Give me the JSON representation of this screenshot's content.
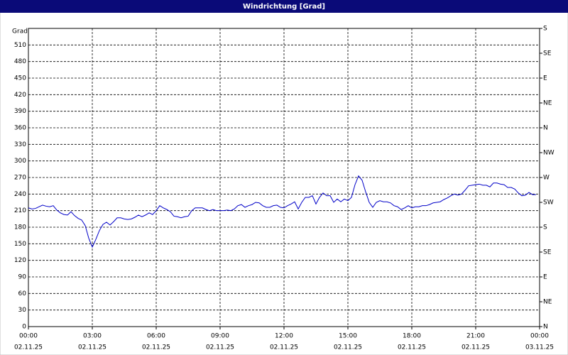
{
  "chart_data": {
    "type": "line",
    "title": "Windrichtung [Grad]",
    "y_label": "Grad",
    "color": "#0000c8",
    "grid": true,
    "xlim": [
      0,
      1440
    ],
    "xticks": [
      {
        "value": 0,
        "label": "00:00",
        "date": "02.11.25"
      },
      {
        "value": 180,
        "label": "03:00",
        "date": "02.11.25"
      },
      {
        "value": 360,
        "label": "06:00",
        "date": "02.11.25"
      },
      {
        "value": 540,
        "label": "09:00",
        "date": "02.11.25"
      },
      {
        "value": 720,
        "label": "12:00",
        "date": "02.11.25"
      },
      {
        "value": 900,
        "label": "15:00",
        "date": "02.11.25"
      },
      {
        "value": 1080,
        "label": "18:00",
        "date": "02.11.25"
      },
      {
        "value": 1260,
        "label": "21:00",
        "date": "02.11.25"
      },
      {
        "value": 1440,
        "label": "00:00",
        "date": "03.11.25"
      }
    ],
    "ylim": [
      0,
      540
    ],
    "yticks": [
      0,
      30,
      60,
      90,
      120,
      150,
      180,
      210,
      240,
      270,
      300,
      330,
      360,
      390,
      420,
      450,
      480,
      510
    ],
    "y2lim": [
      0,
      540
    ],
    "y2ticks": [
      {
        "value": 0,
        "label": "N"
      },
      {
        "value": 45,
        "label": "NE"
      },
      {
        "value": 90,
        "label": "E"
      },
      {
        "value": 135,
        "label": "SE"
      },
      {
        "value": 180,
        "label": "S"
      },
      {
        "value": 225,
        "label": "SW"
      },
      {
        "value": 270,
        "label": "W"
      },
      {
        "value": 315,
        "label": "NW"
      },
      {
        "value": 360,
        "label": "N"
      },
      {
        "value": 405,
        "label": "NE"
      },
      {
        "value": 450,
        "label": "E"
      },
      {
        "value": 495,
        "label": "SE"
      },
      {
        "value": 540,
        "label": "S"
      }
    ],
    "x": [
      0,
      10,
      20,
      30,
      40,
      50,
      60,
      70,
      80,
      90,
      100,
      110,
      120,
      130,
      140,
      150,
      160,
      170,
      180,
      190,
      200,
      210,
      220,
      230,
      240,
      250,
      260,
      270,
      280,
      290,
      300,
      310,
      320,
      330,
      340,
      350,
      360,
      370,
      380,
      390,
      400,
      410,
      420,
      430,
      440,
      450,
      460,
      470,
      480,
      490,
      500,
      510,
      520,
      530,
      540,
      550,
      560,
      570,
      580,
      590,
      600,
      610,
      620,
      630,
      640,
      650,
      660,
      670,
      680,
      690,
      700,
      710,
      720,
      730,
      740,
      750,
      760,
      770,
      780,
      790,
      800,
      810,
      820,
      830,
      840,
      850,
      860,
      870,
      880,
      890,
      900,
      910,
      920,
      930,
      940,
      950,
      960,
      970,
      980,
      990,
      1000,
      1010,
      1020,
      1030,
      1040,
      1050,
      1060,
      1070,
      1080,
      1090,
      1100,
      1110,
      1120,
      1130,
      1140,
      1150,
      1160,
      1170,
      1180,
      1190,
      1200,
      1210,
      1220,
      1230,
      1240,
      1250,
      1260,
      1270,
      1280,
      1290,
      1300,
      1310,
      1320,
      1330,
      1340,
      1350,
      1360,
      1370,
      1380,
      1390,
      1400,
      1410,
      1420,
      1430
    ],
    "values": [
      215,
      213,
      214,
      217,
      220,
      218,
      217,
      219,
      211,
      206,
      203,
      202,
      208,
      201,
      196,
      193,
      183,
      160,
      144,
      158,
      174,
      185,
      189,
      184,
      190,
      197,
      197,
      195,
      194,
      195,
      198,
      202,
      199,
      202,
      206,
      203,
      210,
      219,
      215,
      212,
      208,
      200,
      199,
      197,
      199,
      200,
      210,
      215,
      215,
      215,
      212,
      210,
      212,
      210,
      210,
      210,
      211,
      210,
      213,
      219,
      221,
      216,
      219,
      221,
      225,
      224,
      219,
      216,
      216,
      219,
      220,
      216,
      215,
      219,
      222,
      226,
      213,
      225,
      234,
      234,
      237,
      222,
      234,
      242,
      237,
      237,
      225,
      231,
      226,
      231,
      228,
      234,
      257,
      273,
      265,
      244,
      225,
      216,
      225,
      228,
      226,
      226,
      224,
      219,
      217,
      212,
      215,
      219,
      215,
      217,
      217,
      219,
      219,
      221,
      224,
      225,
      226,
      230,
      233,
      237,
      240,
      238,
      240,
      247,
      255,
      256,
      257,
      258,
      256,
      256,
      253,
      260,
      260,
      258,
      257,
      252,
      252,
      249,
      242,
      237,
      238,
      243,
      239,
      239
    ]
  }
}
